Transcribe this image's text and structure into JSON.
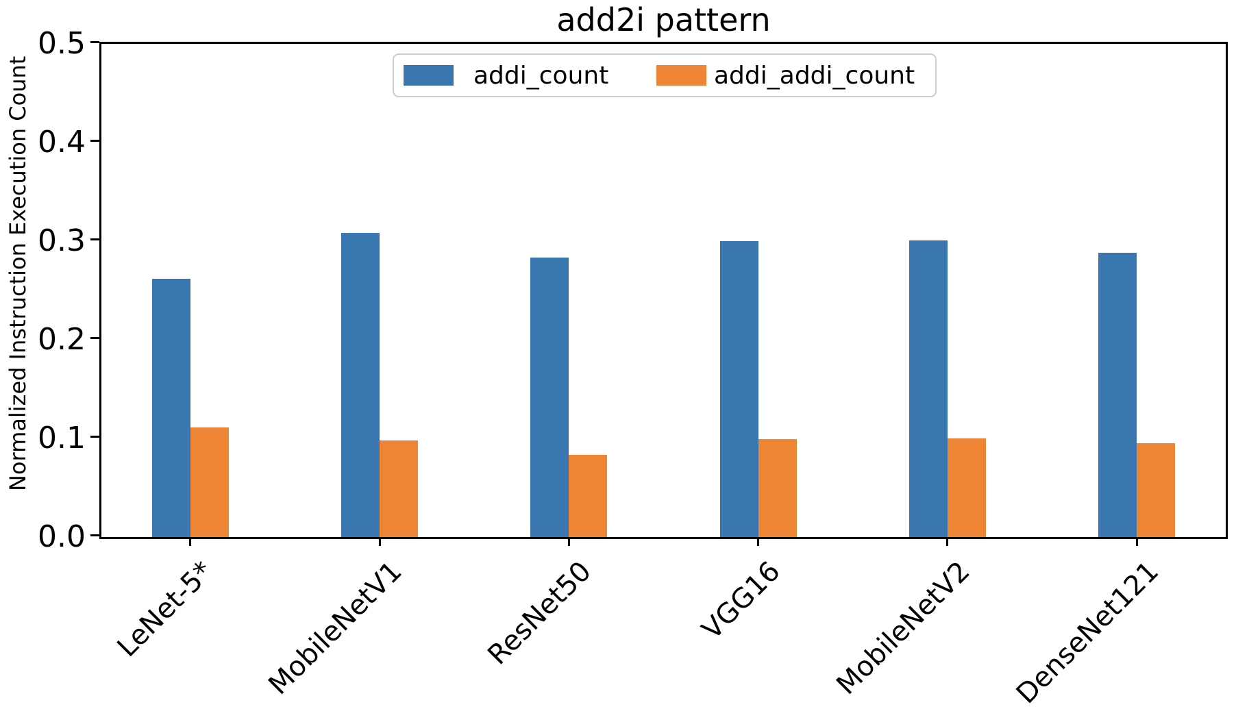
{
  "chart_data": {
    "type": "bar",
    "title": "add2i pattern",
    "xlabel": "",
    "ylabel": "Normalized Instruction Execution Count",
    "categories": [
      "LeNet-5*",
      "MobileNetV1",
      "ResNet50",
      "VGG16",
      "MobileNetV2",
      "DenseNet121"
    ],
    "series": [
      {
        "name": "addi_count",
        "color": "#3a76af",
        "values": [
          0.262,
          0.308,
          0.283,
          0.3,
          0.301,
          0.288
        ]
      },
      {
        "name": "addi_addi_count",
        "color": "#ee8534",
        "values": [
          0.111,
          0.098,
          0.083,
          0.099,
          0.1,
          0.095
        ]
      }
    ],
    "ylim": [
      0.0,
      0.5
    ],
    "yticks": [
      "0.0",
      "0.1",
      "0.2",
      "0.3",
      "0.4",
      "0.5"
    ],
    "grid": false,
    "legend_position": "upper center",
    "x_tick_rotation_deg": 45
  }
}
